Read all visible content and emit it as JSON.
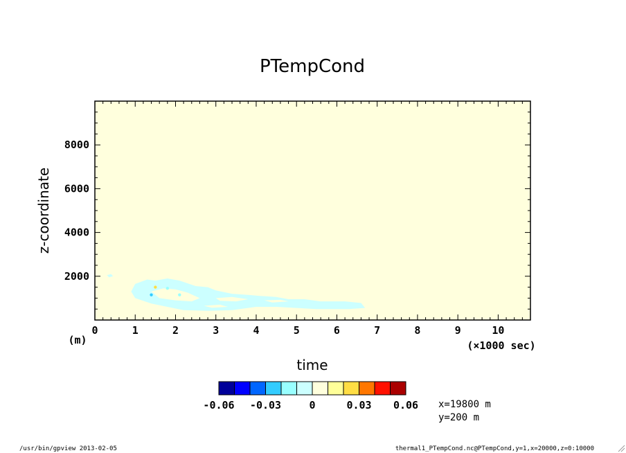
{
  "chart_data": {
    "type": "heatmap",
    "title": "PTempCond",
    "xlabel": "time",
    "ylabel": "z-coordinate",
    "x_unit": "(×1000 sec)",
    "y_unit": "(m)",
    "xlim": [
      0,
      10.8
    ],
    "ylim": [
      0,
      10000
    ],
    "x_ticks": [
      0,
      1,
      2,
      3,
      4,
      5,
      6,
      7,
      8,
      9,
      10
    ],
    "y_ticks": [
      2000,
      4000,
      6000,
      8000
    ],
    "background_value_color": "#ffffdd",
    "colorbar": {
      "levels": [
        -0.06,
        -0.05,
        -0.04,
        -0.03,
        -0.02,
        -0.01,
        0,
        0.01,
        0.02,
        0.03,
        0.04,
        0.05,
        0.06
      ],
      "labels": [
        "-0.06",
        "-0.03",
        "0",
        "0.03",
        "0.06"
      ],
      "label_values": [
        -0.06,
        -0.03,
        0,
        0.03,
        0.06
      ],
      "colors": [
        "#000099",
        "#0000ff",
        "#0066ff",
        "#33ccff",
        "#99ffff",
        "#ccffff",
        "#ffffdd",
        "#ffff99",
        "#ffdd44",
        "#ff7700",
        "#ff1100",
        "#aa0000"
      ]
    },
    "regions": [
      {
        "color": "#ccffff",
        "points": [
          [
            0.3,
            2050
          ],
          [
            0.4,
            2100
          ],
          [
            0.45,
            2000
          ],
          [
            0.35,
            1950
          ]
        ]
      },
      {
        "color": "#ccffff",
        "points": [
          [
            1.0,
            1650
          ],
          [
            1.3,
            1850
          ],
          [
            1.5,
            1800
          ],
          [
            1.8,
            1900
          ],
          [
            2.1,
            1800
          ],
          [
            2.5,
            1550
          ],
          [
            2.8,
            1500
          ],
          [
            3.0,
            1350
          ],
          [
            3.4,
            1200
          ],
          [
            3.8,
            1150
          ],
          [
            4.1,
            1100
          ],
          [
            4.5,
            1050
          ],
          [
            4.8,
            950
          ],
          [
            5.2,
            950
          ],
          [
            5.6,
            850
          ],
          [
            6.2,
            850
          ],
          [
            6.6,
            780
          ],
          [
            6.7,
            550
          ],
          [
            6.3,
            500
          ],
          [
            5.5,
            500
          ],
          [
            5.0,
            550
          ],
          [
            4.5,
            600
          ],
          [
            4.0,
            600
          ],
          [
            3.4,
            450
          ],
          [
            2.8,
            420
          ],
          [
            2.2,
            450
          ],
          [
            1.8,
            600
          ],
          [
            1.4,
            750
          ],
          [
            1.0,
            1000
          ],
          [
            0.9,
            1300
          ]
        ]
      },
      {
        "color": "#ffffdd",
        "points": [
          [
            1.4,
            1300
          ],
          [
            1.7,
            1450
          ],
          [
            2.0,
            1400
          ],
          [
            2.3,
            1250
          ],
          [
            2.6,
            1000
          ],
          [
            2.4,
            850
          ],
          [
            2.0,
            900
          ],
          [
            1.6,
            1000
          ]
        ]
      },
      {
        "color": "#ffffdd",
        "points": [
          [
            3.0,
            1000
          ],
          [
            3.4,
            1050
          ],
          [
            3.8,
            950
          ],
          [
            3.5,
            850
          ],
          [
            3.1,
            880
          ]
        ]
      },
      {
        "color": "#ffffdd",
        "points": [
          [
            4.2,
            900
          ],
          [
            4.6,
            920
          ],
          [
            4.8,
            850
          ],
          [
            4.4,
            800
          ]
        ]
      },
      {
        "color": "#ffffdd",
        "points": [
          [
            2.7,
            650
          ],
          [
            3.1,
            700
          ],
          [
            3.3,
            600
          ],
          [
            2.9,
            560
          ]
        ]
      }
    ],
    "spots": [
      {
        "x": 1.5,
        "y": 1500,
        "color": "#ffdd44"
      },
      {
        "x": 1.8,
        "y": 1450,
        "color": "#99ffff"
      },
      {
        "x": 1.4,
        "y": 1150,
        "color": "#33ccff"
      },
      {
        "x": 2.1,
        "y": 1150,
        "color": "#99ffff"
      }
    ],
    "annotations": [
      "x=19800 m",
      "y=200 m"
    ]
  },
  "footer": {
    "left": "/usr/bin/gpview  2013-02-05",
    "right": "thermal1_PTempCond.nc@PTempCond,y=1,x=20000,z=0:10000"
  }
}
